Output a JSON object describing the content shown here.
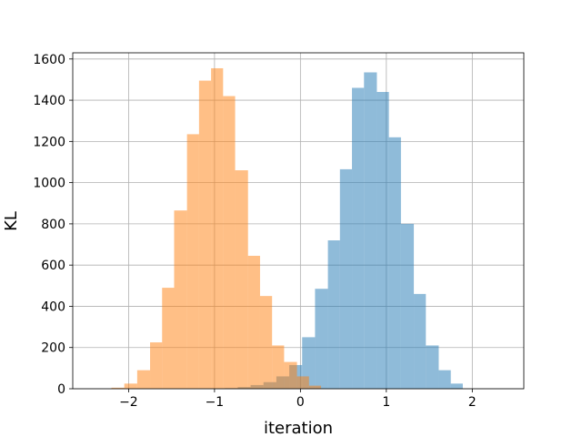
{
  "chart_data": {
    "type": "histogram",
    "title": "",
    "xlabel": "iteration",
    "ylabel": "KL",
    "xlim": [
      -2.65,
      2.6
    ],
    "ylim": [
      0,
      1630
    ],
    "xticks": [
      -2,
      -1,
      0,
      1,
      2
    ],
    "yticks": [
      0,
      200,
      400,
      600,
      800,
      1000,
      1200,
      1400,
      1600
    ],
    "grid": true,
    "legend": false,
    "series": [
      {
        "color": "#1f77b4",
        "alpha": 0.5,
        "bin_edges": [
          -0.88,
          -0.73,
          -0.58,
          -0.43,
          -0.28,
          -0.13,
          0.02,
          0.17,
          0.32,
          0.46,
          0.6,
          0.74,
          0.89,
          1.03,
          1.17,
          1.32,
          1.46,
          1.61,
          1.75,
          1.89
        ],
        "counts": [
          3,
          8,
          18,
          32,
          60,
          115,
          250,
          485,
          720,
          1065,
          1460,
          1535,
          1440,
          1220,
          800,
          460,
          210,
          90,
          25
        ]
      },
      {
        "color": "#ff7f0e",
        "alpha": 0.5,
        "bin_edges": [
          -2.2,
          -2.05,
          -1.9,
          -1.75,
          -1.61,
          -1.47,
          -1.32,
          -1.18,
          -1.04,
          -0.9,
          -0.76,
          -0.61,
          -0.47,
          -0.33,
          -0.19,
          -0.04,
          0.1,
          0.24
        ],
        "counts": [
          5,
          25,
          90,
          225,
          490,
          865,
          1235,
          1495,
          1555,
          1420,
          1060,
          645,
          450,
          210,
          130,
          60,
          15
        ]
      }
    ]
  }
}
